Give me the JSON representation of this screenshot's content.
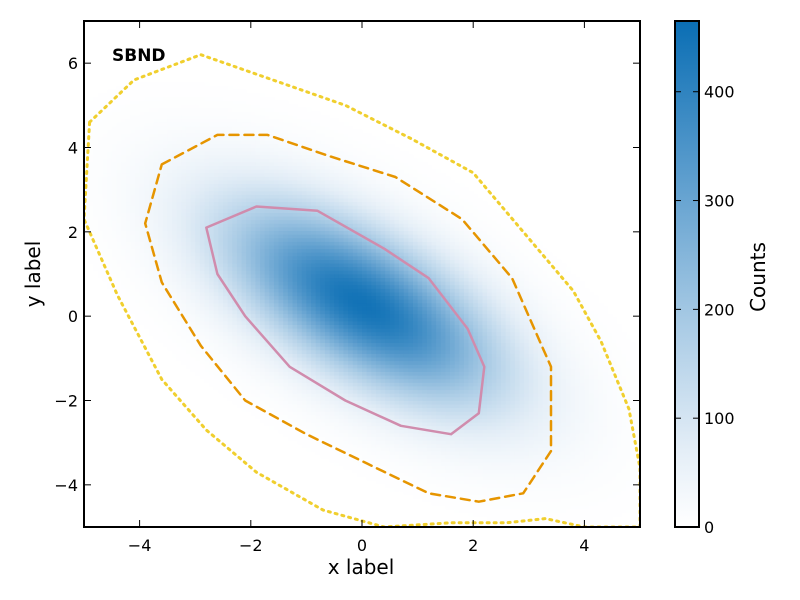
{
  "chart_data": {
    "type": "heatmap",
    "title": "",
    "annotation": "SBND",
    "xlabel": "x label",
    "ylabel": "y label",
    "xlim": [
      -5,
      5
    ],
    "ylim": [
      -5,
      7
    ],
    "x_ticks": [
      -4,
      -2,
      0,
      2,
      4
    ],
    "y_ticks": [
      -4,
      -2,
      0,
      2,
      4,
      6
    ],
    "x_tick_labels": [
      "−4",
      "−2",
      "0",
      "2",
      "4"
    ],
    "y_tick_labels": [
      "−4",
      "−2",
      "0",
      "2",
      "4",
      "6"
    ],
    "grid": false,
    "colormap": "white-to-blue",
    "colorbar": {
      "label": "Counts",
      "min": 0,
      "max": 465,
      "ticks": [
        0,
        100,
        200,
        300,
        400
      ],
      "tick_labels": [
        "0",
        "100",
        "200",
        "300",
        "400"
      ],
      "color_low": "#ffffff",
      "color_high": "#0a6eb4"
    },
    "distribution": {
      "kind": "2D Gaussian histogram",
      "center": [
        0.0,
        0.3
      ],
      "peak_count": 450,
      "major_axis_direction": [
        1,
        -0.92
      ],
      "sigma_major": 2.1,
      "sigma_minor": 1.0
    },
    "contours": [
      {
        "level": "inner",
        "style": "solid",
        "color": "#d08cad",
        "points": [
          [
            -2.8,
            2.1
          ],
          [
            -1.9,
            2.6
          ],
          [
            -0.8,
            2.5
          ],
          [
            0.4,
            1.6
          ],
          [
            1.2,
            0.9
          ],
          [
            1.9,
            -0.3
          ],
          [
            2.2,
            -1.2
          ],
          [
            2.1,
            -2.3
          ],
          [
            1.6,
            -2.8
          ],
          [
            0.7,
            -2.6
          ],
          [
            -0.3,
            -2.0
          ],
          [
            -1.3,
            -1.2
          ],
          [
            -2.1,
            0.0
          ],
          [
            -2.6,
            1.0
          ]
        ]
      },
      {
        "level": "middle",
        "style": "dashed",
        "color": "#e69500",
        "points": [
          [
            -3.6,
            3.6
          ],
          [
            -2.6,
            4.3
          ],
          [
            -1.7,
            4.3
          ],
          [
            -0.6,
            3.8
          ],
          [
            0.6,
            3.3
          ],
          [
            1.8,
            2.3
          ],
          [
            2.7,
            0.9
          ],
          [
            3.4,
            -1.2
          ],
          [
            3.4,
            -3.2
          ],
          [
            2.9,
            -4.2
          ],
          [
            2.1,
            -4.4
          ],
          [
            1.2,
            -4.2
          ],
          [
            0.1,
            -3.5
          ],
          [
            -1.0,
            -2.8
          ],
          [
            -2.1,
            -2.0
          ],
          [
            -2.9,
            -0.7
          ],
          [
            -3.6,
            0.8
          ],
          [
            -3.9,
            2.2
          ]
        ]
      },
      {
        "level": "outer",
        "style": "dotted",
        "color": "#f0cf2e",
        "points": [
          [
            -4.9,
            4.6
          ],
          [
            -4.1,
            5.6
          ],
          [
            -2.9,
            6.2
          ],
          [
            -1.6,
            5.6
          ],
          [
            -0.3,
            5.0
          ],
          [
            0.9,
            4.2
          ],
          [
            2.0,
            3.4
          ],
          [
            2.9,
            2.0
          ],
          [
            3.8,
            0.6
          ],
          [
            4.3,
            -0.6
          ],
          [
            4.8,
            -2.2
          ],
          [
            5.0,
            -3.6
          ],
          [
            5.0,
            -5.0
          ],
          [
            4.0,
            -5.0
          ],
          [
            3.3,
            -4.8
          ],
          [
            2.6,
            -4.9
          ],
          [
            1.6,
            -4.9
          ],
          [
            0.4,
            -5.0
          ],
          [
            -0.7,
            -4.6
          ],
          [
            -1.9,
            -3.7
          ],
          [
            -2.8,
            -2.7
          ],
          [
            -3.6,
            -1.5
          ],
          [
            -4.4,
            0.5
          ],
          [
            -5.0,
            2.3
          ]
        ]
      }
    ]
  }
}
